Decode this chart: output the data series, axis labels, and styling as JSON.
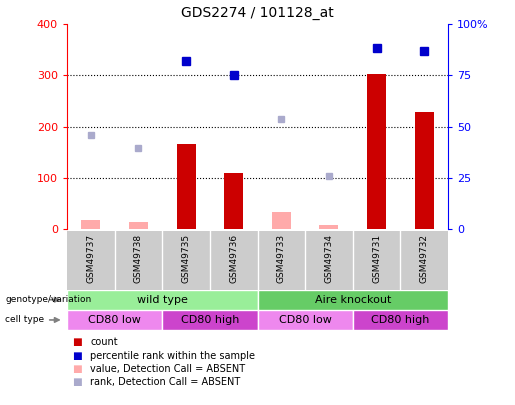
{
  "title": "GDS2274 / 101128_at",
  "samples": [
    "GSM49737",
    "GSM49738",
    "GSM49735",
    "GSM49736",
    "GSM49733",
    "GSM49734",
    "GSM49731",
    "GSM49732"
  ],
  "count_values": [
    null,
    null,
    165,
    110,
    null,
    null,
    303,
    228
  ],
  "count_absent": [
    18,
    14,
    null,
    null,
    33,
    8,
    null,
    null
  ],
  "rank_present": [
    null,
    null,
    82,
    75,
    null,
    null,
    88.5,
    87
  ],
  "rank_absent": [
    45.8,
    39.5,
    null,
    null,
    53.8,
    25.8,
    null,
    null
  ],
  "ylim_left": [
    0,
    400
  ],
  "ylim_right": [
    0,
    100
  ],
  "yticks_left": [
    0,
    100,
    200,
    300,
    400
  ],
  "yticks_right": [
    0,
    25,
    50,
    75,
    100
  ],
  "ytick_right_labels": [
    "0",
    "25",
    "50",
    "75",
    "100%"
  ],
  "bar_color": "#cc0000",
  "absent_bar_color": "#ffaaaa",
  "rank_present_color": "#0000cc",
  "rank_absent_color": "#aaaacc",
  "bg_color": "#ffffff",
  "plot_bg_color": "#ffffff",
  "label_bg_color": "#cccccc",
  "genotype_groups": [
    {
      "label": "wild type",
      "start": 0,
      "end": 4,
      "color": "#99ee99"
    },
    {
      "label": "Aire knockout",
      "start": 4,
      "end": 8,
      "color": "#66cc66"
    }
  ],
  "cell_type_groups": [
    {
      "label": "CD80 low",
      "start": 0,
      "end": 2,
      "color": "#ee88ee"
    },
    {
      "label": "CD80 high",
      "start": 2,
      "end": 4,
      "color": "#cc44cc"
    },
    {
      "label": "CD80 low",
      "start": 4,
      "end": 6,
      "color": "#ee88ee"
    },
    {
      "label": "CD80 high",
      "start": 6,
      "end": 8,
      "color": "#cc44cc"
    }
  ],
  "legend_items": [
    {
      "label": "count",
      "color": "#cc0000"
    },
    {
      "label": "percentile rank within the sample",
      "color": "#0000cc"
    },
    {
      "label": "value, Detection Call = ABSENT",
      "color": "#ffaaaa"
    },
    {
      "label": "rank, Detection Call = ABSENT",
      "color": "#aaaacc"
    }
  ]
}
